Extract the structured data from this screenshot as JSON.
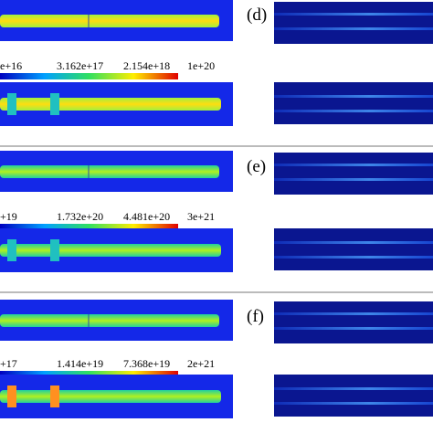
{
  "panels": [
    {
      "label": "(d)",
      "colorbar_labels": [
        "e+16",
        "3.162e+17",
        "2.154e+18",
        "1e+20"
      ]
    },
    {
      "label": "(e)",
      "colorbar_labels": [
        "+19",
        "1.732e+20",
        "4.481e+20",
        "3e+21"
      ]
    },
    {
      "label": "(f)",
      "colorbar_labels": [
        "+17",
        "1.414e+19",
        "7.368e+19",
        "2e+21"
      ]
    }
  ]
}
